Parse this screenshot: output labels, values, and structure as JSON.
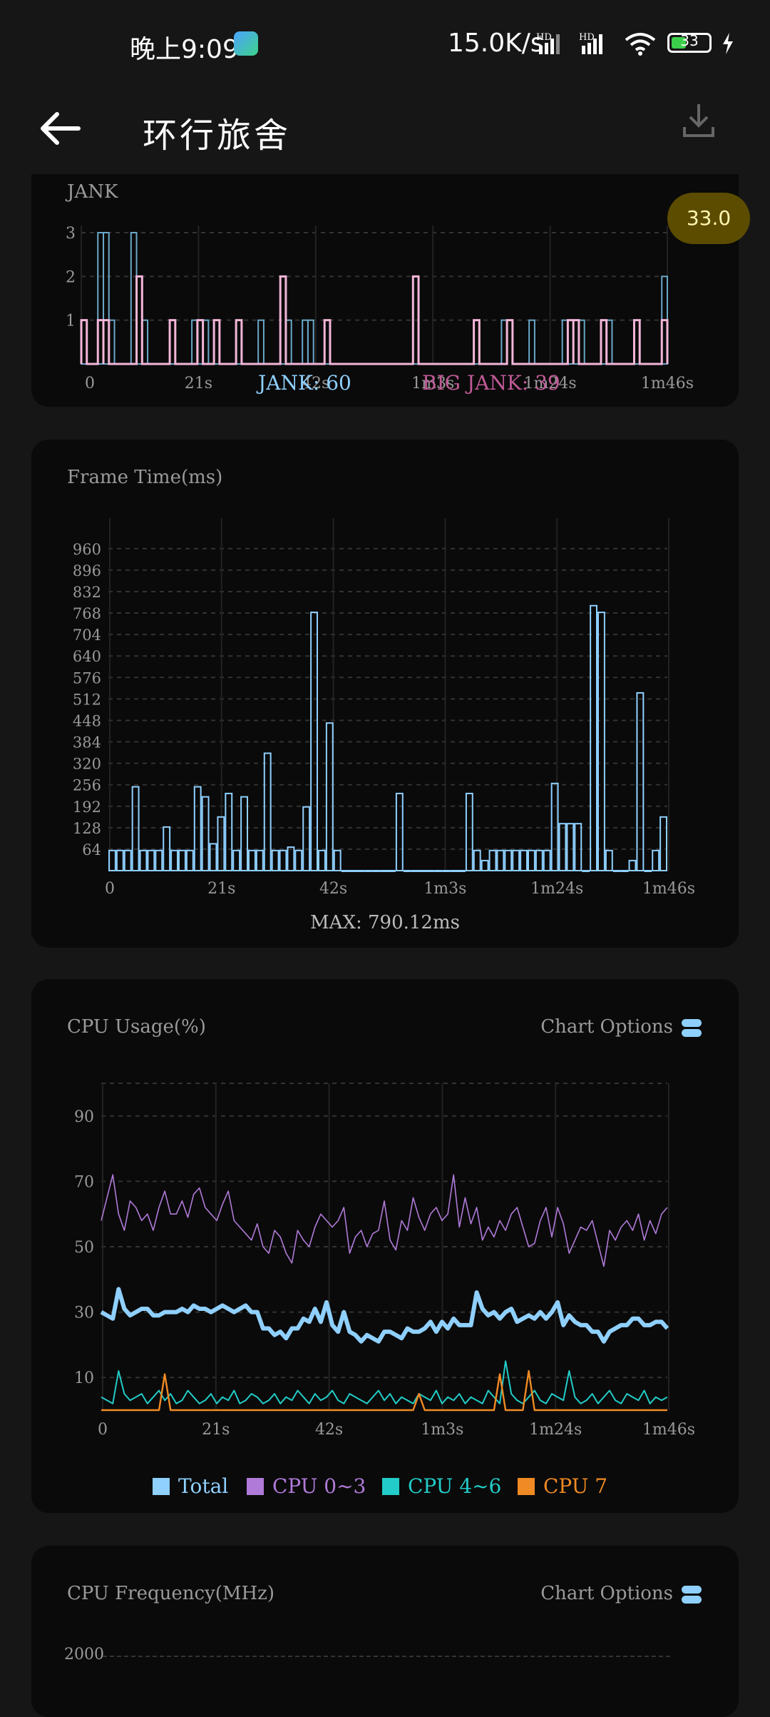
{
  "status_bar": {
    "time": "晚上9:09",
    "net_speed": "15.0K/s",
    "signal1_label": "HD",
    "signal2_label": "HD",
    "battery": "33",
    "icons": [
      "app-notification-icon",
      "signal-icon",
      "signal-icon",
      "wifi-icon",
      "battery-icon",
      "charging-icon"
    ]
  },
  "header": {
    "title": "环行旅舍",
    "back_icon": "arrow-left-icon",
    "download_icon": "download-icon"
  },
  "fps_badge": "33.0",
  "jank_card": {
    "title": "JANK",
    "y_ticks": [
      "1",
      "2",
      "3"
    ],
    "x_ticks": [
      "0",
      "21s",
      "42s",
      "1m3s",
      "1m24s",
      "1m46s"
    ],
    "jank_label": "JANK: 60",
    "big_jank_label": "BIG JANK: 39",
    "colors": {
      "jank": "#8fd0ff",
      "big_jank": "#f3b6d8"
    }
  },
  "frame_card": {
    "title": "Frame Time(ms)",
    "y_ticks": [
      "64",
      "128",
      "192",
      "256",
      "320",
      "384",
      "448",
      "512",
      "576",
      "640",
      "704",
      "768",
      "832",
      "896",
      "960"
    ],
    "x_ticks": [
      "0",
      "21s",
      "42s",
      "1m3s",
      "1m24s",
      "1m46s"
    ],
    "max_label": "MAX: 790.12ms"
  },
  "cpu_card": {
    "title": "CPU Usage(%)",
    "options_label": "Chart Options",
    "y_ticks": [
      "10",
      "30",
      "50",
      "70",
      "90"
    ],
    "x_ticks": [
      "0",
      "21s",
      "42s",
      "1m3s",
      "1m24s",
      "1m46s"
    ],
    "legend": [
      {
        "label": "Total",
        "color": "#8fd0ff"
      },
      {
        "label": "CPU 0~3",
        "color": "#b07ad8"
      },
      {
        "label": "CPU 4~6",
        "color": "#22ccc8"
      },
      {
        "label": "CPU 7",
        "color": "#f08a24"
      }
    ]
  },
  "freq_card": {
    "title": "CPU Frequency(MHz)",
    "options_label": "Chart Options",
    "y_ticks": [
      "2000"
    ]
  },
  "chart_data": [
    {
      "type": "bar",
      "title": "JANK",
      "xlabel": "",
      "ylabel": "",
      "x_range_s": [
        0,
        106
      ],
      "ylim": [
        0,
        3
      ],
      "series": [
        {
          "name": "JANK: 60",
          "points": [
            [
              0,
              1
            ],
            [
              3,
              3
            ],
            [
              4,
              3
            ],
            [
              5,
              1
            ],
            [
              9,
              3
            ],
            [
              10,
              2
            ],
            [
              11,
              1
            ],
            [
              16,
              1
            ],
            [
              20,
              1
            ],
            [
              21,
              1
            ],
            [
              22,
              1
            ],
            [
              24,
              1
            ],
            [
              28,
              1
            ],
            [
              32,
              1
            ],
            [
              36,
              2
            ],
            [
              37,
              1
            ],
            [
              40,
              1
            ],
            [
              41,
              1
            ],
            [
              44,
              1
            ],
            [
              60,
              2
            ],
            [
              71,
              1
            ],
            [
              76,
              1
            ],
            [
              81,
              1
            ],
            [
              87,
              1
            ],
            [
              88,
              1
            ],
            [
              89,
              1
            ],
            [
              90,
              1
            ],
            [
              94,
              1
            ],
            [
              95,
              1
            ],
            [
              100,
              1
            ],
            [
              105,
              2
            ]
          ]
        },
        {
          "name": "BIG JANK: 39",
          "points": [
            [
              0,
              1
            ],
            [
              3,
              1
            ],
            [
              4,
              1
            ],
            [
              10,
              2
            ],
            [
              16,
              1
            ],
            [
              21,
              1
            ],
            [
              24,
              1
            ],
            [
              28,
              1
            ],
            [
              36,
              2
            ],
            [
              44,
              1
            ],
            [
              60,
              2
            ],
            [
              71,
              1
            ],
            [
              77,
              1
            ],
            [
              88,
              1
            ],
            [
              89,
              1
            ],
            [
              94,
              1
            ],
            [
              100,
              1
            ],
            [
              105,
              1
            ]
          ]
        }
      ]
    },
    {
      "type": "bar",
      "title": "Frame Time(ms)",
      "xlabel": "",
      "ylabel": "",
      "x_range_s": [
        0,
        106
      ],
      "ylim": [
        0,
        1000
      ],
      "values": [
        60,
        60,
        60,
        250,
        60,
        60,
        60,
        130,
        60,
        60,
        60,
        250,
        220,
        80,
        160,
        230,
        60,
        220,
        60,
        60,
        350,
        60,
        60,
        70,
        60,
        190,
        770,
        60,
        440,
        60,
        0,
        0,
        0,
        0,
        0,
        0,
        0,
        230,
        0,
        0,
        0,
        0,
        0,
        0,
        0,
        0,
        230,
        60,
        30,
        60,
        60,
        60,
        60,
        60,
        60,
        60,
        60,
        260,
        140,
        140,
        140,
        0,
        790,
        770,
        60,
        0,
        0,
        30,
        530,
        0,
        60,
        160
      ]
    },
    {
      "type": "line",
      "title": "CPU Usage(%)",
      "xlabel": "",
      "ylabel": "",
      "x_range_s": [
        0,
        106
      ],
      "ylim": [
        0,
        100
      ],
      "series": [
        {
          "name": "Total",
          "values": [
            30,
            29,
            28,
            37,
            31,
            29,
            30,
            31,
            31,
            29,
            29,
            30,
            30,
            30,
            31,
            30,
            32,
            31,
            31,
            30,
            31,
            32,
            31,
            30,
            31,
            32,
            30,
            30,
            25,
            25,
            23,
            24,
            22,
            25,
            25,
            28,
            27,
            31,
            27,
            33,
            26,
            24,
            30,
            24,
            23,
            21,
            23,
            22,
            21,
            24,
            24,
            23,
            22,
            25,
            24,
            24,
            25,
            27,
            24,
            27,
            25,
            28,
            26,
            26,
            26,
            36,
            31,
            29,
            30,
            28,
            30,
            31,
            27,
            28,
            29,
            28,
            30,
            28,
            30,
            33,
            26,
            29,
            27,
            26,
            26,
            24,
            24,
            21,
            24,
            25,
            26,
            26,
            28,
            28,
            26,
            26,
            27,
            27,
            25
          ]
        },
        {
          "name": "CPU 0~3",
          "values": [
            58,
            65,
            72,
            60,
            55,
            64,
            62,
            58,
            60,
            55,
            62,
            67,
            60,
            60,
            64,
            59,
            66,
            68,
            62,
            60,
            58,
            63,
            67,
            58,
            56,
            54,
            52,
            57,
            50,
            48,
            55,
            53,
            48,
            45,
            55,
            52,
            50,
            56,
            60,
            58,
            56,
            58,
            62,
            48,
            53,
            55,
            50,
            54,
            55,
            64,
            52,
            49,
            58,
            55,
            65,
            59,
            55,
            60,
            62,
            58,
            60,
            72,
            56,
            65,
            57,
            62,
            52,
            56,
            53,
            58,
            55,
            60,
            62,
            56,
            50,
            51,
            58,
            62,
            53,
            62,
            57,
            48,
            52,
            56,
            55,
            58,
            51,
            44,
            55,
            52,
            56,
            58,
            55,
            60,
            52,
            58,
            54,
            60,
            62
          ]
        },
        {
          "name": "CPU 4~6",
          "values": [
            4,
            3,
            2,
            12,
            5,
            3,
            4,
            5,
            2,
            4,
            6,
            3,
            5,
            2,
            3,
            6,
            4,
            2,
            3,
            5,
            2,
            4,
            3,
            6,
            2,
            3,
            5,
            4,
            2,
            3,
            5,
            2,
            4,
            3,
            6,
            4,
            2,
            5,
            3,
            4,
            6,
            3,
            2,
            5,
            4,
            3,
            2,
            4,
            6,
            3,
            5,
            2,
            4,
            3,
            2,
            5,
            4,
            3,
            6,
            2,
            4,
            3,
            5,
            2,
            4,
            3,
            2,
            6,
            4,
            2,
            15,
            5,
            3,
            2,
            4,
            6,
            3,
            2,
            5,
            4,
            3,
            12,
            4,
            2,
            3,
            5,
            2,
            4,
            6,
            3,
            2,
            5,
            4,
            3,
            6,
            2,
            4,
            3,
            4
          ]
        },
        {
          "name": "CPU 7",
          "values": [
            0,
            0,
            0,
            0,
            0,
            0,
            0,
            0,
            0,
            0,
            0,
            11,
            0,
            0,
            0,
            0,
            0,
            0,
            0,
            0,
            0,
            0,
            0,
            0,
            0,
            0,
            0,
            0,
            0,
            0,
            0,
            0,
            0,
            0,
            0,
            0,
            0,
            0,
            0,
            0,
            0,
            0,
            0,
            0,
            0,
            0,
            0,
            0,
            0,
            0,
            0,
            0,
            0,
            0,
            0,
            5,
            0,
            0,
            0,
            0,
            0,
            0,
            0,
            0,
            0,
            0,
            0,
            0,
            0,
            11,
            0,
            0,
            0,
            0,
            12,
            0,
            0,
            0,
            0,
            0,
            0,
            0,
            0,
            0,
            0,
            0,
            0,
            0,
            0,
            0,
            0,
            0,
            0,
            0,
            0,
            0,
            0,
            0,
            0
          ]
        }
      ]
    }
  ]
}
